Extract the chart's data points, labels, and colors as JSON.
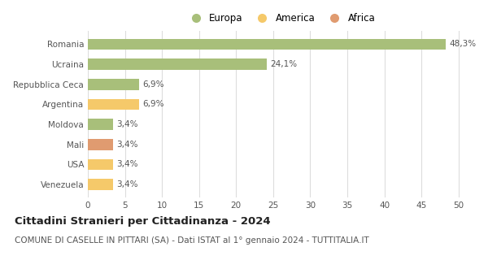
{
  "categories": [
    "Venezuela",
    "USA",
    "Mali",
    "Moldova",
    "Argentina",
    "Repubblica Ceca",
    "Ucraina",
    "Romania"
  ],
  "values": [
    3.4,
    3.4,
    3.4,
    3.4,
    6.9,
    6.9,
    24.1,
    48.3
  ],
  "colors": [
    "#f5c96a",
    "#f5c96a",
    "#e09b70",
    "#a8bf7a",
    "#f5c96a",
    "#a8bf7a",
    "#a8bf7a",
    "#a8bf7a"
  ],
  "labels": [
    "3,4%",
    "3,4%",
    "3,4%",
    "3,4%",
    "6,9%",
    "6,9%",
    "24,1%",
    "48,3%"
  ],
  "legend": [
    {
      "label": "Europa",
      "color": "#a8bf7a"
    },
    {
      "label": "America",
      "color": "#f5c96a"
    },
    {
      "label": "Africa",
      "color": "#e09b70"
    }
  ],
  "xlim": [
    0,
    52
  ],
  "xticks": [
    0,
    5,
    10,
    15,
    20,
    25,
    30,
    35,
    40,
    45,
    50
  ],
  "title": "Cittadini Stranieri per Cittadinanza - 2024",
  "subtitle": "COMUNE DI CASELLE IN PITTARI (SA) - Dati ISTAT al 1° gennaio 2024 - TUTTITALIA.IT",
  "title_fontsize": 9.5,
  "subtitle_fontsize": 7.5,
  "label_fontsize": 7.5,
  "tick_fontsize": 7.5,
  "legend_fontsize": 8.5,
  "background_color": "#ffffff",
  "grid_color": "#dddddd",
  "bar_height": 0.55
}
